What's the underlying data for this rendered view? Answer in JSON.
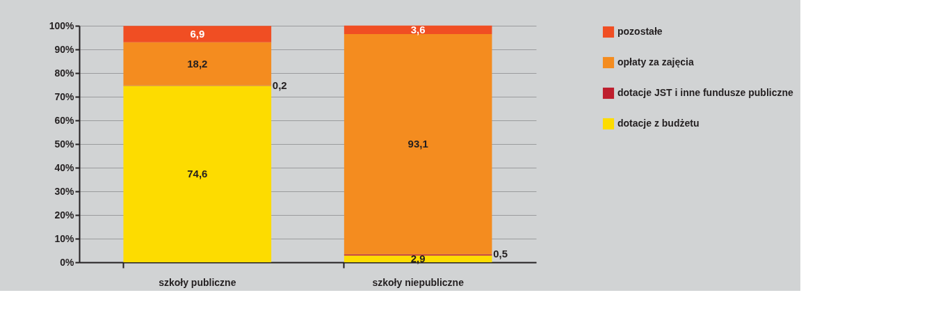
{
  "chart_data": {
    "type": "bar",
    "stacked": true,
    "categories": [
      "szkoły publiczne",
      "szkoły niepubliczne"
    ],
    "series": [
      {
        "name": "dotacje z budżetu",
        "color": "#fddc00",
        "values": [
          74.6,
          2.9
        ],
        "value_labels": [
          "74,6",
          "2,9"
        ]
      },
      {
        "name": "dotacje JST i inne fundusze publiczne",
        "color": "#be1e2d",
        "values": [
          0.2,
          0.5
        ],
        "value_labels": [
          "0,2",
          "0,5"
        ]
      },
      {
        "name": "opłaty za zajęcia",
        "color": "#f48c1f",
        "values": [
          18.2,
          93.1
        ],
        "value_labels": [
          "18,2",
          "93,1"
        ]
      },
      {
        "name": "pozostałe",
        "color": "#f04e23",
        "values": [
          6.9,
          3.6
        ],
        "value_labels": [
          "6,9",
          "3,6"
        ]
      }
    ],
    "ylim": [
      0,
      100
    ],
    "yticks": [
      {
        "value": 0,
        "label": "0%"
      },
      {
        "value": 10,
        "label": "10%"
      },
      {
        "value": 20,
        "label": "20%"
      },
      {
        "value": 30,
        "label": "30%"
      },
      {
        "value": 40,
        "label": "40%"
      },
      {
        "value": 50,
        "label": "50%"
      },
      {
        "value": 60,
        "label": "60%"
      },
      {
        "value": 70,
        "label": "70%"
      },
      {
        "value": 80,
        "label": "80%"
      },
      {
        "value": 90,
        "label": "90%"
      },
      {
        "value": 100,
        "label": "100%"
      }
    ],
    "grid": "y",
    "legend": "right",
    "data_labels": true
  }
}
